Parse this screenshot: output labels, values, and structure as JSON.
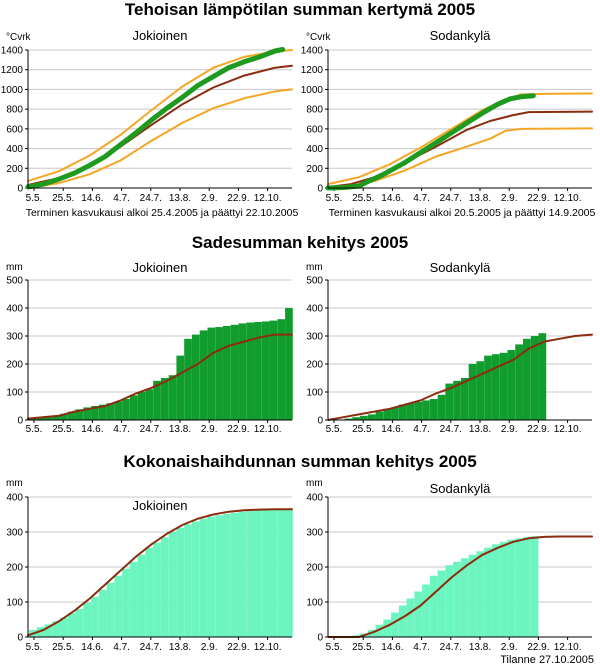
{
  "sections": [
    {
      "title": "Tehoisan lämpötilan summan kertymä 2005"
    },
    {
      "title": "Sadesumman kehitys 2005"
    },
    {
      "title": "Kokonaishaihdunnan summan kehitys 2005"
    }
  ],
  "footer": "Tilanne 27.10.2005",
  "colors": {
    "green_line": "#1e9b1e",
    "orange_line": "#f5a623",
    "brown_line": "#8b2c0f",
    "rain_bar": "#119d2e",
    "evap_bar": "#6cf5bf",
    "axis": "#000000",
    "grid": "#c8c8c8"
  },
  "chart_data": [
    {
      "type": "line",
      "station": "Jokioinen",
      "ylabel": "°Cvrk",
      "ylim": [
        0,
        1400
      ],
      "yticks": [
        0,
        200,
        400,
        600,
        800,
        1000,
        1200,
        1400
      ],
      "xticks": [
        "5.5.",
        "25.5.",
        "14.6.",
        "4.7.",
        "24.7.",
        "13.8.",
        "2.9.",
        "22.9.",
        "12.10."
      ],
      "x_range": [
        0,
        171
      ],
      "note": "Terminen kasvukausi alkoi 25.4.2005 ja päättyi 22.10.2005",
      "series": [
        {
          "color_key": "orange_line",
          "width": 2,
          "points": [
            [
              0,
              70
            ],
            [
              20,
              170
            ],
            [
              40,
              330
            ],
            [
              60,
              540
            ],
            [
              80,
              790
            ],
            [
              100,
              1030
            ],
            [
              120,
              1220
            ],
            [
              140,
              1330
            ],
            [
              160,
              1385
            ],
            [
              171,
              1400
            ]
          ]
        },
        {
          "color_key": "orange_line",
          "width": 2,
          "points": [
            [
              0,
              0
            ],
            [
              20,
              50
            ],
            [
              40,
              140
            ],
            [
              60,
              280
            ],
            [
              80,
              480
            ],
            [
              100,
              660
            ],
            [
              120,
              810
            ],
            [
              140,
              910
            ],
            [
              160,
              980
            ],
            [
              171,
              1000
            ]
          ]
        },
        {
          "color_key": "brown_line",
          "width": 2,
          "points": [
            [
              0,
              30
            ],
            [
              20,
              100
            ],
            [
              40,
              230
            ],
            [
              60,
              420
            ],
            [
              80,
              640
            ],
            [
              100,
              850
            ],
            [
              120,
              1020
            ],
            [
              140,
              1140
            ],
            [
              160,
              1220
            ],
            [
              171,
              1240
            ]
          ]
        },
        {
          "color_key": "green_line",
          "width": 5,
          "points": [
            [
              0,
              10
            ],
            [
              10,
              40
            ],
            [
              20,
              90
            ],
            [
              30,
              150
            ],
            [
              40,
              230
            ],
            [
              50,
              320
            ],
            [
              60,
              440
            ],
            [
              70,
              560
            ],
            [
              80,
              690
            ],
            [
              90,
              810
            ],
            [
              100,
              920
            ],
            [
              110,
              1040
            ],
            [
              120,
              1130
            ],
            [
              130,
              1220
            ],
            [
              140,
              1280
            ],
            [
              150,
              1330
            ],
            [
              160,
              1390
            ],
            [
              165,
              1405
            ]
          ]
        }
      ]
    },
    {
      "type": "line",
      "station": "Sodankylä",
      "ylabel": "°Cvrk",
      "ylim": [
        0,
        1400
      ],
      "yticks": [
        0,
        200,
        400,
        600,
        800,
        1000,
        1200,
        1400
      ],
      "xticks": [
        "5.5.",
        "25.5.",
        "14.6.",
        "4.7.",
        "24.7.",
        "13.8.",
        "2.9.",
        "22.9.",
        "12.10."
      ],
      "x_range": [
        0,
        171
      ],
      "note": "Terminen kasvukausi alkoi 20.5.2005 ja päättyi 14.9.2005",
      "series": [
        {
          "color_key": "orange_line",
          "width": 2,
          "points": [
            [
              0,
              40
            ],
            [
              20,
              110
            ],
            [
              40,
              240
            ],
            [
              60,
              410
            ],
            [
              80,
              600
            ],
            [
              100,
              790
            ],
            [
              115,
              900
            ],
            [
              125,
              950
            ],
            [
              140,
              955
            ],
            [
              171,
              960
            ]
          ]
        },
        {
          "color_key": "orange_line",
          "width": 2,
          "points": [
            [
              0,
              0
            ],
            [
              15,
              20
            ],
            [
              30,
              70
            ],
            [
              50,
              180
            ],
            [
              70,
              320
            ],
            [
              90,
              420
            ],
            [
              105,
              500
            ],
            [
              115,
              580
            ],
            [
              125,
              600
            ],
            [
              171,
              605
            ]
          ]
        },
        {
          "color_key": "brown_line",
          "width": 2,
          "points": [
            [
              0,
              10
            ],
            [
              15,
              40
            ],
            [
              30,
              110
            ],
            [
              50,
              260
            ],
            [
              70,
              420
            ],
            [
              90,
              590
            ],
            [
              105,
              680
            ],
            [
              120,
              740
            ],
            [
              130,
              770
            ],
            [
              171,
              775
            ]
          ]
        },
        {
          "color_key": "green_line",
          "width": 5,
          "points": [
            [
              0,
              0
            ],
            [
              10,
              5
            ],
            [
              20,
              20
            ],
            [
              25,
              60
            ],
            [
              35,
              130
            ],
            [
              50,
              260
            ],
            [
              60,
              360
            ],
            [
              70,
              460
            ],
            [
              80,
              560
            ],
            [
              90,
              660
            ],
            [
              100,
              760
            ],
            [
              110,
              850
            ],
            [
              118,
              905
            ],
            [
              125,
              925
            ],
            [
              133,
              935
            ]
          ]
        }
      ]
    },
    {
      "type": "bar",
      "station": "Jokioinen",
      "ylabel": "mm",
      "ylim": [
        0,
        500
      ],
      "yticks": [
        0,
        100,
        200,
        300,
        400,
        500
      ],
      "xticks": [
        "5.5.",
        "25.5.",
        "14.6.",
        "4.7.",
        "24.7.",
        "13.8.",
        "2.9.",
        "22.9.",
        "12.10."
      ],
      "x_range": [
        0,
        171
      ],
      "bar_color_key": "rain_bar",
      "bars": [
        5,
        8,
        12,
        15,
        22,
        30,
        38,
        45,
        50,
        55,
        60,
        66,
        75,
        88,
        100,
        110,
        140,
        150,
        160,
        230,
        290,
        305,
        320,
        330,
        332,
        336,
        340,
        345,
        348,
        350,
        352,
        355,
        360,
        400
      ],
      "line_color_key": "brown_line",
      "line": [
        [
          0,
          5
        ],
        [
          20,
          15
        ],
        [
          30,
          30
        ],
        [
          40,
          40
        ],
        [
          50,
          50
        ],
        [
          60,
          70
        ],
        [
          70,
          95
        ],
        [
          80,
          115
        ],
        [
          90,
          140
        ],
        [
          100,
          170
        ],
        [
          110,
          200
        ],
        [
          120,
          240
        ],
        [
          130,
          265
        ],
        [
          140,
          280
        ],
        [
          150,
          295
        ],
        [
          160,
          305
        ],
        [
          171,
          305
        ]
      ]
    },
    {
      "type": "bar",
      "station": "Sodankylä",
      "ylabel": "mm",
      "ylim": [
        0,
        500
      ],
      "yticks": [
        0,
        100,
        200,
        300,
        400,
        500
      ],
      "xticks": [
        "5.5.",
        "25.5.",
        "14.6.",
        "4.7.",
        "24.7.",
        "13.8.",
        "2.9.",
        "22.9.",
        "12.10."
      ],
      "x_range": [
        0,
        171
      ],
      "bar_color_key": "rain_bar",
      "bars": [
        0,
        0,
        5,
        10,
        15,
        20,
        30,
        40,
        45,
        55,
        60,
        65,
        70,
        75,
        90,
        130,
        140,
        150,
        200,
        210,
        230,
        235,
        240,
        250,
        270,
        290,
        300,
        310
      ],
      "line_color_key": "brown_line",
      "line": [
        [
          0,
          0
        ],
        [
          10,
          10
        ],
        [
          20,
          20
        ],
        [
          30,
          30
        ],
        [
          40,
          40
        ],
        [
          50,
          55
        ],
        [
          60,
          70
        ],
        [
          70,
          95
        ],
        [
          80,
          115
        ],
        [
          90,
          140
        ],
        [
          100,
          165
        ],
        [
          110,
          190
        ],
        [
          120,
          215
        ],
        [
          130,
          255
        ],
        [
          140,
          280
        ],
        [
          150,
          290
        ],
        [
          160,
          300
        ],
        [
          171,
          305
        ]
      ]
    },
    {
      "type": "bar",
      "station": "Jokioinen",
      "ylabel": "mm",
      "ylim": [
        0,
        400
      ],
      "yticks": [
        0,
        100,
        200,
        300,
        400
      ],
      "xticks": [
        "5.5.",
        "25.5.",
        "14.6.",
        "4.7.",
        "24.7.",
        "13.8.",
        "2.9.",
        "22.9.",
        "12.10."
      ],
      "x_range": [
        0,
        171
      ],
      "bar_color_key": "evap_bar",
      "bars": [
        20,
        28,
        36,
        45,
        55,
        68,
        80,
        98,
        115,
        135,
        155,
        175,
        195,
        215,
        235,
        255,
        270,
        285,
        300,
        312,
        322,
        330,
        338,
        344,
        348,
        352,
        355,
        358,
        360,
        362,
        363,
        364,
        365,
        365
      ],
      "line_color_key": "brown_line",
      "line": [
        [
          0,
          5
        ],
        [
          10,
          20
        ],
        [
          20,
          45
        ],
        [
          30,
          75
        ],
        [
          40,
          110
        ],
        [
          50,
          150
        ],
        [
          60,
          190
        ],
        [
          70,
          230
        ],
        [
          80,
          265
        ],
        [
          90,
          295
        ],
        [
          100,
          320
        ],
        [
          110,
          338
        ],
        [
          120,
          350
        ],
        [
          130,
          358
        ],
        [
          140,
          362
        ],
        [
          150,
          364
        ],
        [
          160,
          365
        ],
        [
          171,
          365
        ]
      ]
    },
    {
      "type": "bar",
      "station": "Sodankylä",
      "ylabel": "mm",
      "ylim": [
        0,
        400
      ],
      "yticks": [
        0,
        100,
        200,
        300,
        400
      ],
      "xticks": [
        "5.5.",
        "25.5.",
        "14.6.",
        "4.7.",
        "24.7.",
        "13.8.",
        "2.9.",
        "22.9.",
        "12.10."
      ],
      "x_range": [
        0,
        171
      ],
      "bar_color_key": "evap_bar",
      "bars": [
        0,
        0,
        0,
        5,
        10,
        20,
        35,
        50,
        70,
        90,
        110,
        130,
        150,
        175,
        190,
        205,
        215,
        225,
        235,
        245,
        255,
        265,
        272,
        278,
        282,
        286,
        288
      ],
      "line_color_key": "brown_line",
      "line": [
        [
          0,
          0
        ],
        [
          20,
          0
        ],
        [
          30,
          15
        ],
        [
          40,
          35
        ],
        [
          50,
          60
        ],
        [
          60,
          90
        ],
        [
          70,
          130
        ],
        [
          80,
          170
        ],
        [
          90,
          205
        ],
        [
          100,
          235
        ],
        [
          110,
          255
        ],
        [
          120,
          272
        ],
        [
          130,
          282
        ],
        [
          140,
          286
        ],
        [
          150,
          287
        ],
        [
          171,
          287
        ]
      ]
    }
  ]
}
